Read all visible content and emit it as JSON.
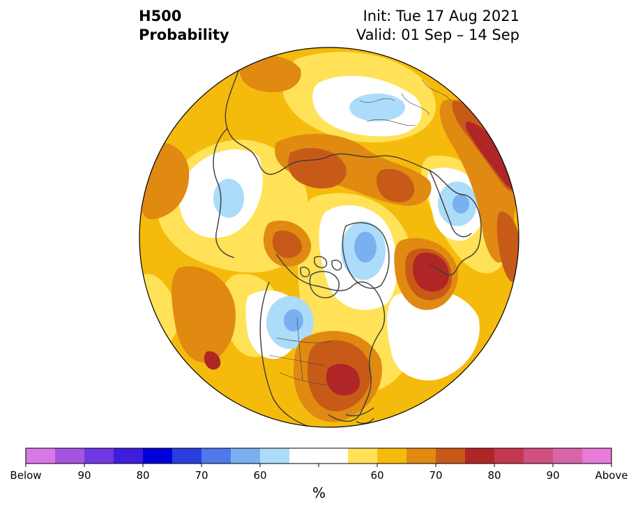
{
  "title": {
    "line1": "H500",
    "line2": "Probability",
    "init": "Init: Tue 17 Aug 2021",
    "valid": "Valid: 01 Sep – 14 Sep"
  },
  "colorbar": {
    "unit": "%",
    "colors": [
      "#d878e8",
      "#a455e0",
      "#7038e0",
      "#3f1ddc",
      "#0000d8",
      "#2a3ee0",
      "#4f78e8",
      "#7ab0f0",
      "#acdcfa",
      "#ffffff",
      "#ffffff",
      "#ffe257",
      "#f5bb0c",
      "#e08a12",
      "#c85a18",
      "#b02626",
      "#c43850",
      "#d05080",
      "#d865a8",
      "#e87ad8"
    ],
    "tick_labels": [
      "Below",
      "90",
      "80",
      "70",
      "60",
      "60",
      "70",
      "80",
      "90",
      "Above"
    ]
  },
  "legend_colors": {
    "background": "#f5bb0c",
    "light_above": "#ffe257",
    "mid_above": "#e08a12",
    "strong_above": "#c85a18",
    "very_strong_above": "#b02626",
    "neutral": "#ffffff",
    "light_below": "#acdcfa",
    "mid_below": "#7ab0f0",
    "coastline": "#3a3a3a"
  }
}
